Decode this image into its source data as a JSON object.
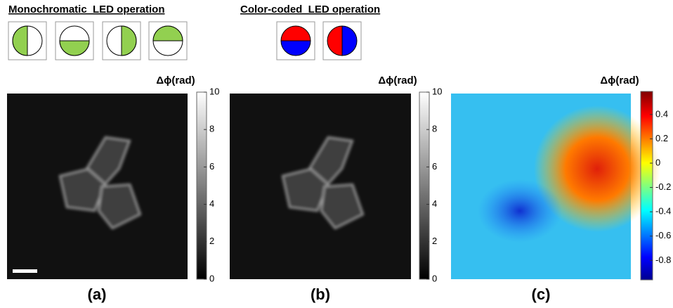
{
  "header": {
    "mono_title": "Monochromatic  LED operation",
    "color_title": "Color-coded  LED operation"
  },
  "panels": [
    {
      "label": "(a)",
      "colorbar": {
        "title": "Δϕ(rad)",
        "lim": [
          0,
          10
        ],
        "ticks": [
          0,
          2,
          4,
          6,
          8,
          10
        ]
      }
    },
    {
      "label": "(b)",
      "colorbar": {
        "title": "Δϕ(rad)",
        "lim": [
          0,
          10
        ],
        "ticks": [
          0,
          2,
          4,
          6,
          8,
          10
        ]
      }
    },
    {
      "label": "(c)",
      "colorbar": {
        "title": "Δϕ(rad)",
        "lim": [
          -0.96,
          0.59
        ],
        "ticks": [
          0.4,
          0.2,
          0,
          -0.2,
          -0.4,
          -0.6,
          -0.8
        ]
      }
    }
  ]
}
